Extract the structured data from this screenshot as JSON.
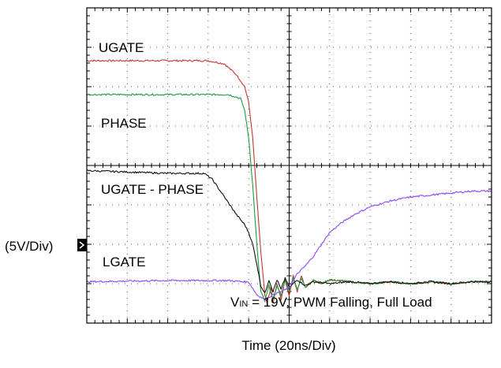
{
  "chart_data": {
    "type": "line",
    "title": "",
    "xlabel": "Time (20ns/Div)",
    "ylabel": "(5V/Div)",
    "x_unit": "ns",
    "x_per_div": 20,
    "y_per_div_volts": 5,
    "xlim": [
      0,
      200
    ],
    "ylim_div": [
      0,
      8
    ],
    "divisions": {
      "x": 10,
      "y": 8
    },
    "grid": true,
    "legend": "none",
    "annotation": {
      "prefix": "V",
      "subscript": "IN",
      "text": " = 19V, PWM Falling, Full Load"
    },
    "series": [
      {
        "name": "UGATE",
        "color": "#c0392b",
        "x": [
          0,
          60,
          68,
          74,
          78,
          80,
          82,
          84,
          86,
          88,
          89,
          90,
          91,
          92,
          94,
          96,
          98,
          100,
          102,
          104,
          106,
          108,
          112,
          116,
          120,
          130,
          140,
          150,
          160,
          170,
          180,
          190,
          200
        ],
        "y": [
          6.66,
          6.66,
          6.58,
          6.3,
          6.0,
          5.6,
          4.7,
          3.2,
          1.8,
          0.7,
          0.5,
          0.7,
          0.9,
          0.5,
          1.0,
          0.6,
          1.1,
          0.7,
          1.2,
          0.8,
          1.2,
          0.9,
          1.1,
          1.0,
          1.1,
          1.05,
          1.0,
          1.05,
          1.0,
          1.05,
          1.0,
          1.05,
          1.05
        ]
      },
      {
        "name": "PHASE",
        "color": "#1e9b3c",
        "x": [
          0,
          60,
          70,
          76,
          78,
          80,
          82,
          84,
          86,
          88,
          90,
          92,
          94,
          96,
          98,
          100,
          102,
          104,
          106,
          108,
          112,
          116,
          120,
          130,
          140,
          150,
          160,
          170,
          180,
          190,
          200
        ],
        "y": [
          5.8,
          5.8,
          5.8,
          5.7,
          5.4,
          4.7,
          3.5,
          2.0,
          0.8,
          0.55,
          0.95,
          0.6,
          0.95,
          0.7,
          1.1,
          0.8,
          1.15,
          0.85,
          1.15,
          0.9,
          1.1,
          1.0,
          1.1,
          1.05,
          1.0,
          1.05,
          1.0,
          1.05,
          1.0,
          1.05,
          1.05
        ]
      },
      {
        "name": "UGATE - PHASE",
        "color": "#111111",
        "x": [
          0,
          40,
          58,
          62,
          66,
          70,
          74,
          78,
          80,
          82,
          84,
          86,
          88,
          90,
          92,
          94,
          96,
          98,
          100,
          104,
          108,
          112,
          120,
          130,
          140,
          150,
          160,
          170,
          180,
          190,
          200
        ],
        "y": [
          3.87,
          3.8,
          3.8,
          3.65,
          3.35,
          3.05,
          2.75,
          2.5,
          2.3,
          2.0,
          1.5,
          0.95,
          0.75,
          1.1,
          0.8,
          1.1,
          0.85,
          1.15,
          0.9,
          1.1,
          0.95,
          1.05,
          1.0,
          1.05,
          1.0,
          1.05,
          1.0,
          1.05,
          1.0,
          1.05,
          1.05
        ]
      },
      {
        "name": "LGATE",
        "color": "#8e44ff",
        "x": [
          0,
          40,
          70,
          80,
          84,
          88,
          92,
          96,
          100,
          104,
          108,
          112,
          116,
          120,
          126,
          132,
          140,
          150,
          160,
          170,
          180,
          190,
          200
        ],
        "y": [
          1.05,
          1.08,
          1.08,
          1.04,
          0.72,
          0.6,
          0.72,
          0.8,
          0.9,
          1.25,
          1.45,
          1.7,
          2.0,
          2.3,
          2.55,
          2.75,
          2.95,
          3.1,
          3.2,
          3.25,
          3.3,
          3.35,
          3.35
        ]
      }
    ]
  }
}
